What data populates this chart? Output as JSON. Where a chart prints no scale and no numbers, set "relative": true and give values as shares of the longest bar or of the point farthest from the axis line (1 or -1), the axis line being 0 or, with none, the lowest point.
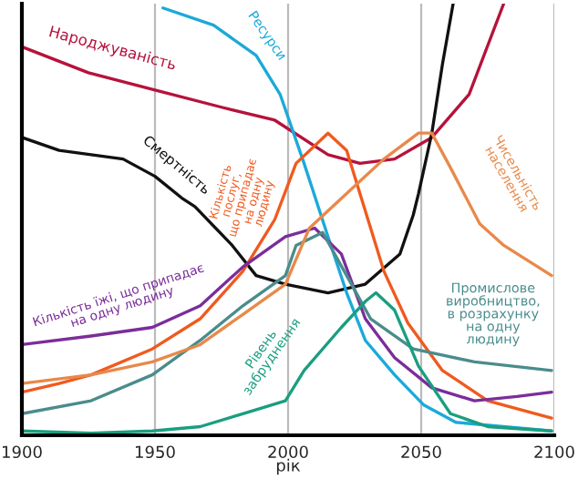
{
  "chart_data": {
    "type": "line",
    "relative": true,
    "xlabel": "рік",
    "xlim": [
      1900,
      2100
    ],
    "xticks": [
      1900,
      1950,
      2000,
      2050,
      2100
    ],
    "grid": "x",
    "legend": false,
    "marker": "none",
    "line_style": "solid",
    "series": [
      {
        "name": "Народжуваність",
        "color": "#b5123c",
        "x": [
          1900,
          1925,
          1950,
          1975,
          1995,
          2015,
          2027,
          2040,
          2054,
          2068,
          2081
        ],
        "values": [
          0.9,
          0.84,
          0.8,
          0.76,
          0.73,
          0.65,
          0.63,
          0.64,
          0.69,
          0.79,
          1.0
        ]
      },
      {
        "name": "Смертність",
        "color": "#111111",
        "x": [
          1900,
          1914,
          1938,
          1950,
          1960,
          1965,
          1979,
          1988,
          1999,
          2015,
          2029,
          2042,
          2047,
          2049,
          2054,
          2058,
          2062
        ],
        "values": [
          0.69,
          0.66,
          0.64,
          0.6,
          0.55,
          0.53,
          0.44,
          0.37,
          0.35,
          0.33,
          0.35,
          0.42,
          0.51,
          0.56,
          0.7,
          0.86,
          1.0
        ]
      },
      {
        "name": "Ресурси",
        "color": "#1ba9d9",
        "x": [
          1953,
          1972,
          1988,
          1997,
          2006,
          2015,
          2022,
          2029,
          2040,
          2051,
          2063,
          2099
        ],
        "values": [
          0.99,
          0.95,
          0.88,
          0.79,
          0.63,
          0.46,
          0.33,
          0.22,
          0.14,
          0.07,
          0.03,
          0.01
        ]
      },
      {
        "name": "Кількість\nпослуг,\nщо припадає\nна одну\nлюдину",
        "color": "#f05a1e",
        "x": [
          1900,
          1914,
          1926,
          1949,
          1967,
          1983,
          1995,
          2003,
          2015,
          2022,
          2029,
          2036,
          2045,
          2058,
          2075,
          2099
        ],
        "values": [
          0.1,
          0.12,
          0.14,
          0.2,
          0.27,
          0.38,
          0.5,
          0.63,
          0.7,
          0.66,
          0.52,
          0.38,
          0.26,
          0.15,
          0.08,
          0.04
        ]
      },
      {
        "name": "Кількість їжі, що припадає\nна одну людину",
        "color": "#7b2d9a",
        "x": [
          1900,
          1926,
          1949,
          1967,
          1983,
          1999,
          2010,
          2020,
          2029,
          2040,
          2054,
          2070,
          2086,
          2099
        ],
        "values": [
          0.21,
          0.23,
          0.25,
          0.3,
          0.39,
          0.46,
          0.48,
          0.42,
          0.27,
          0.18,
          0.11,
          0.08,
          0.09,
          0.1
        ]
      },
      {
        "name": "Промислове\nвиробництво,\nв розрахунку\nна одну\nлюдину",
        "color": "#4a8c8c",
        "x": [
          1900,
          1926,
          1949,
          1967,
          1983,
          1999,
          2003,
          2013,
          2022,
          2031,
          2047,
          2070,
          2099
        ],
        "values": [
          0.05,
          0.08,
          0.14,
          0.22,
          0.3,
          0.37,
          0.44,
          0.47,
          0.37,
          0.27,
          0.2,
          0.17,
          0.15
        ]
      },
      {
        "name": "Чисельність\nнаселення",
        "color": "#e8894a",
        "x": [
          1900,
          1926,
          1949,
          1967,
          1983,
          1999,
          2008,
          2022,
          2036,
          2049,
          2054,
          2061,
          2072,
          2081,
          2099
        ],
        "values": [
          0.12,
          0.14,
          0.17,
          0.21,
          0.28,
          0.35,
          0.48,
          0.56,
          0.64,
          0.7,
          0.7,
          0.62,
          0.49,
          0.44,
          0.37
        ]
      },
      {
        "name": "Рівень\nзабруднення",
        "color": "#1a9e80",
        "x": [
          1900,
          1926,
          1949,
          1967,
          1983,
          1999,
          2006,
          2020,
          2029,
          2033,
          2040,
          2049,
          2061,
          2075,
          2099
        ],
        "values": [
          0.01,
          0.005,
          0.01,
          0.02,
          0.05,
          0.08,
          0.15,
          0.25,
          0.31,
          0.33,
          0.29,
          0.16,
          0.05,
          0.02,
          0.01
        ]
      }
    ]
  }
}
